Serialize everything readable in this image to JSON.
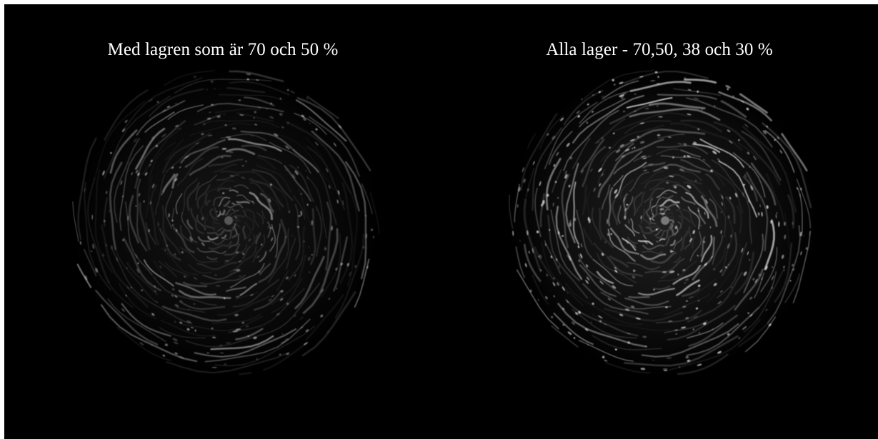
{
  "panels": [
    {
      "caption": "Med lagren som är 70 och 50 %",
      "layers_percent": [
        70,
        50
      ]
    },
    {
      "caption": "Alla lager - 70,50, 38 och 30 %",
      "layers_percent": [
        70,
        50,
        38,
        30
      ]
    }
  ],
  "colors": {
    "background": "#000000",
    "text": "#ffffff",
    "swirl": "#ffffff"
  }
}
